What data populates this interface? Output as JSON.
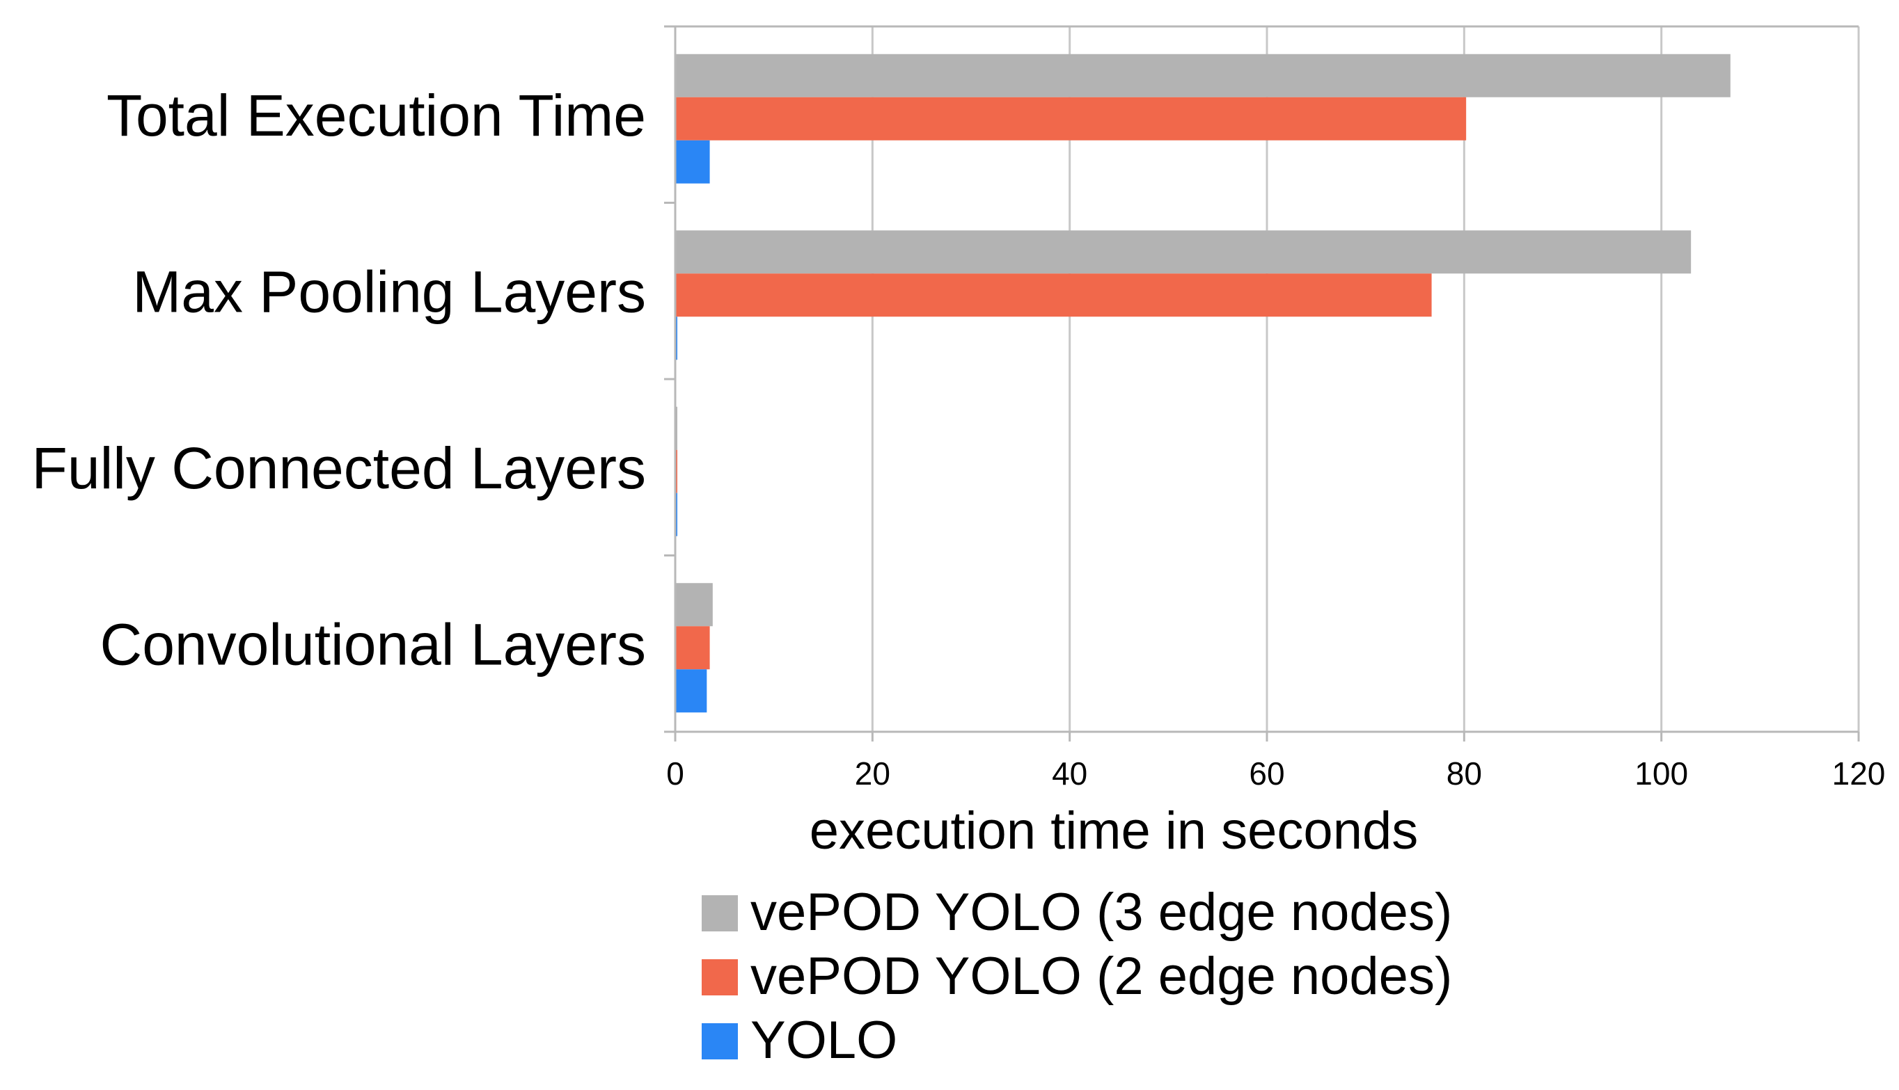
{
  "chart_data": {
    "type": "bar",
    "orientation": "horizontal",
    "categories": [
      "Total Execution Time",
      "Max Pooling Layers",
      "Fully Connected Layers",
      "Convolutional Layers"
    ],
    "series": [
      {
        "name": "vePOD YOLO (3 edge nodes)",
        "color": "#b3b3b3",
        "values": [
          107,
          103,
          0.05,
          3.8
        ]
      },
      {
        "name": "vePOD YOLO (2 edge nodes)",
        "color": "#f1684b",
        "values": [
          80.2,
          76.7,
          0.05,
          3.5
        ]
      },
      {
        "name": "YOLO",
        "color": "#2a86f5",
        "values": [
          3.5,
          0.15,
          0.15,
          3.2
        ]
      }
    ],
    "xlabel": "execution time in seconds",
    "ylabel": "",
    "xlim": [
      0,
      120
    ],
    "xticks": [
      "0",
      "20",
      "40",
      "60",
      "80",
      "100",
      "120"
    ],
    "grid": true,
    "legend_position": "bottom"
  }
}
